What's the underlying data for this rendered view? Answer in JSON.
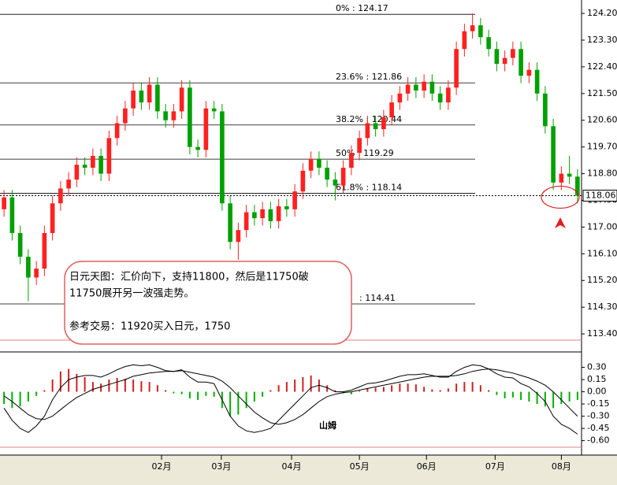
{
  "chart_data": [
    {
      "type": "candlestick",
      "up_color": "#ff2020",
      "down_color": "#00a000",
      "xlim": [
        0,
        72
      ],
      "xticks": [
        {
          "value": 20,
          "label": "02月"
        },
        {
          "value": 27.4,
          "label": "03月"
        },
        {
          "value": 36.1,
          "label": "04月"
        },
        {
          "value": 44.5,
          "label": "05月"
        },
        {
          "value": 52.8,
          "label": "06月"
        },
        {
          "value": 61.3,
          "label": "07月"
        },
        {
          "value": 69.5,
          "label": "08月"
        }
      ],
      "ylim": [
        113.19,
        124.52
      ],
      "yticks": [
        {
          "value": 124.2,
          "label": "124.20"
        },
        {
          "value": 123.3,
          "label": "123.30"
        },
        {
          "value": 122.4,
          "label": "122.40"
        },
        {
          "value": 121.5,
          "label": "121.50"
        },
        {
          "value": 120.6,
          "label": "120.60"
        },
        {
          "value": 119.7,
          "label": "119.70"
        },
        {
          "value": 118.8,
          "label": "118.80"
        },
        {
          "value": 117.9,
          "label": "117.90"
        },
        {
          "value": 117.0,
          "label": "117.00"
        },
        {
          "value": 116.1,
          "label": "116.10"
        },
        {
          "value": 115.2,
          "label": "115.20"
        },
        {
          "value": 114.3,
          "label": "114.30"
        },
        {
          "value": 113.4,
          "label": "113.40"
        }
      ],
      "last_price": {
        "value": 118.06,
        "label": "118.06"
      },
      "fib_levels": [
        {
          "value": 124.17,
          "label": "0% : 124.17"
        },
        {
          "value": 121.86,
          "label": "23.6% : 121.86"
        },
        {
          "value": 120.44,
          "label": "38.2% : 120.44"
        },
        {
          "value": 119.29,
          "label": "50% : 119.29"
        },
        {
          "value": 118.14,
          "label": "61.8% : 118.14"
        },
        {
          "value": 114.41,
          "label": ": 114.41"
        }
      ],
      "annotation": [
        "日元天图：汇价向下，支持11800，然后是11750破",
        "11750展开另一波强走势。",
        "",
        "参考交易：11920买入日元，1750"
      ],
      "open": [
        117.6,
        118.0,
        116.8,
        116.0,
        115.3,
        115.6,
        116.8,
        117.8,
        118.3,
        118.6,
        119.1,
        119.0,
        119.4,
        118.8,
        120.0,
        120.5,
        121.0,
        121.6,
        121.2,
        121.8,
        120.9,
        120.6,
        120.9,
        121.7,
        119.7,
        119.6,
        121.0,
        120.9,
        117.8,
        116.5,
        116.9,
        117.5,
        117.3,
        117.6,
        117.2,
        117.7,
        117.6,
        118.2,
        118.9,
        119.3,
        119.0,
        118.6,
        118.4,
        119.0,
        119.5,
        120.0,
        120.5,
        120.3,
        120.7,
        121.2,
        121.5,
        121.8,
        121.6,
        121.9,
        121.5,
        121.2,
        121.7,
        123.0,
        123.6,
        123.8,
        123.4,
        123.0,
        122.5,
        122.7,
        123.0,
        122.1,
        122.3,
        121.5,
        120.4,
        118.5,
        118.8,
        118.7
      ],
      "high": [
        118.25,
        118.25,
        117.05,
        116.25,
        115.85,
        117.05,
        118.05,
        118.55,
        118.85,
        119.35,
        119.35,
        119.65,
        119.65,
        120.25,
        120.75,
        121.25,
        121.85,
        121.85,
        122.05,
        122.05,
        121.15,
        121.15,
        121.95,
        121.95,
        119.95,
        121.25,
        121.25,
        121.15,
        118.05,
        117.15,
        117.75,
        117.75,
        117.85,
        117.85,
        117.95,
        117.95,
        118.45,
        119.15,
        119.55,
        119.55,
        119.25,
        118.85,
        119.25,
        119.75,
        120.25,
        120.75,
        120.75,
        120.95,
        121.45,
        121.75,
        122.05,
        122.05,
        122.15,
        122.15,
        121.75,
        121.95,
        123.25,
        123.85,
        124.2,
        124.05,
        123.65,
        123.25,
        122.95,
        123.25,
        123.25,
        122.55,
        122.55,
        121.75,
        120.65,
        119.05,
        119.4,
        118.95
      ],
      "low": [
        117.35,
        116.55,
        115.75,
        114.5,
        115.05,
        115.35,
        116.55,
        117.55,
        118.05,
        118.35,
        118.75,
        118.75,
        118.55,
        118.55,
        119.75,
        120.25,
        120.75,
        120.95,
        120.95,
        120.65,
        120.35,
        120.35,
        120.65,
        119.45,
        119.35,
        119.35,
        120.65,
        117.55,
        116.25,
        115.9,
        116.65,
        117.05,
        117.05,
        116.95,
        116.95,
        117.35,
        117.35,
        117.95,
        118.65,
        118.75,
        118.35,
        117.9,
        118.15,
        118.75,
        119.25,
        119.75,
        120.05,
        120.05,
        120.45,
        120.95,
        121.25,
        121.35,
        121.35,
        121.25,
        120.95,
        120.95,
        121.45,
        122.75,
        123.35,
        123.15,
        122.75,
        122.25,
        122.25,
        122.45,
        121.85,
        121.85,
        121.25,
        120.15,
        118.25,
        118.25,
        118.45,
        117.8
      ],
      "close": [
        118.0,
        116.8,
        116.0,
        115.3,
        115.6,
        116.8,
        117.8,
        118.3,
        118.6,
        119.1,
        119.0,
        119.4,
        118.8,
        120.0,
        120.5,
        121.0,
        121.6,
        121.2,
        121.8,
        120.9,
        120.6,
        120.9,
        121.7,
        119.7,
        119.6,
        121.0,
        120.9,
        117.8,
        116.5,
        116.9,
        117.5,
        117.3,
        117.6,
        117.2,
        117.7,
        117.6,
        118.2,
        118.9,
        119.3,
        119.0,
        118.6,
        118.4,
        119.0,
        119.5,
        120.0,
        120.5,
        120.3,
        120.7,
        121.2,
        121.5,
        121.8,
        121.6,
        121.9,
        121.5,
        121.2,
        121.7,
        123.0,
        123.6,
        123.8,
        123.4,
        123.0,
        122.5,
        122.7,
        123.0,
        122.1,
        122.3,
        121.5,
        120.4,
        118.5,
        118.8,
        118.7,
        118.06
      ]
    },
    {
      "type": "macd",
      "label": "山姆",
      "pos_color": "#d02020",
      "neg_color": "#00b000",
      "ylim": [
        -0.7,
        0.46
      ],
      "yticks": [
        {
          "value": 0.3,
          "label": "0.30"
        },
        {
          "value": 0.15,
          "label": "0.15"
        },
        {
          "value": 0,
          "label": "0.00"
        },
        {
          "value": -0.15,
          "label": "-0.15"
        },
        {
          "value": -0.3,
          "label": "-0.30"
        },
        {
          "value": -0.45,
          "label": "-0.45"
        },
        {
          "value": -0.6,
          "label": "-0.60"
        }
      ],
      "histogram": [
        -0.15,
        -0.2,
        -0.18,
        -0.12,
        -0.05,
        0.02,
        0.15,
        0.25,
        0.28,
        0.22,
        0.18,
        0.12,
        0.1,
        0.15,
        0.17,
        0.16,
        0.15,
        0.13,
        0.12,
        0.08,
        0.02,
        -0.02,
        -0.03,
        -0.08,
        -0.1,
        -0.05,
        -0.06,
        -0.2,
        -0.3,
        -0.28,
        -0.2,
        -0.12,
        -0.06,
        0.02,
        0.08,
        0.12,
        0.15,
        0.18,
        0.2,
        0.15,
        0.08,
        0.02,
        -0.02,
        -0.03,
        0.01,
        0.04,
        0.05,
        0.06,
        0.08,
        0.1,
        0.1,
        0.09,
        0.06,
        0.03,
        0.02,
        0.04,
        0.1,
        0.12,
        0.12,
        0.08,
        0.02,
        -0.04,
        -0.08,
        -0.07,
        -0.1,
        -0.12,
        -0.15,
        -0.18,
        -0.2,
        -0.15,
        -0.12,
        -0.1
      ],
      "dif": [
        -0.2,
        -0.35,
        -0.45,
        -0.5,
        -0.42,
        -0.3,
        -0.1,
        0.05,
        0.15,
        0.18,
        0.2,
        0.2,
        0.18,
        0.22,
        0.27,
        0.31,
        0.33,
        0.32,
        0.33,
        0.3,
        0.26,
        0.25,
        0.27,
        0.18,
        0.12,
        0.12,
        0.1,
        -0.1,
        -0.3,
        -0.42,
        -0.48,
        -0.5,
        -0.48,
        -0.45,
        -0.35,
        -0.25,
        -0.15,
        -0.05,
        0.05,
        0.08,
        0.05,
        0.0,
        0.0,
        0.02,
        0.06,
        0.1,
        0.11,
        0.13,
        0.16,
        0.19,
        0.21,
        0.21,
        0.22,
        0.2,
        0.18,
        0.18,
        0.25,
        0.3,
        0.33,
        0.32,
        0.28,
        0.22,
        0.18,
        0.17,
        0.1,
        0.06,
        -0.02,
        -0.12,
        -0.3,
        -0.4,
        -0.45,
        -0.52
      ],
      "dea": [
        -0.05,
        -0.12,
        -0.2,
        -0.28,
        -0.33,
        -0.34,
        -0.3,
        -0.22,
        -0.14,
        -0.07,
        -0.02,
        0.03,
        0.06,
        0.09,
        0.12,
        0.15,
        0.19,
        0.21,
        0.23,
        0.24,
        0.25,
        0.25,
        0.26,
        0.24,
        0.22,
        0.2,
        0.18,
        0.13,
        0.05,
        -0.05,
        -0.15,
        -0.25,
        -0.32,
        -0.38,
        -0.4,
        -0.38,
        -0.34,
        -0.28,
        -0.2,
        -0.12,
        -0.06,
        -0.03,
        -0.01,
        0.0,
        0.02,
        0.04,
        0.06,
        0.08,
        0.1,
        0.12,
        0.14,
        0.16,
        0.18,
        0.19,
        0.19,
        0.19,
        0.2,
        0.22,
        0.25,
        0.27,
        0.28,
        0.27,
        0.25,
        0.23,
        0.2,
        0.17,
        0.13,
        0.08,
        0.0,
        -0.1,
        -0.2,
        -0.3
      ]
    }
  ]
}
